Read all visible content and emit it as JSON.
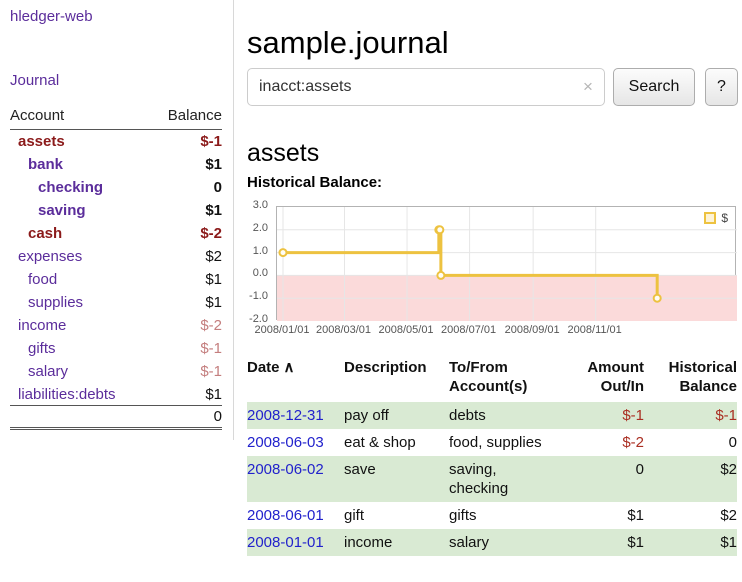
{
  "colors": {
    "link_purple": "#5b2d9b",
    "negative_dark": "#8b1a1a",
    "negative_light": "#c47e7e",
    "table_negative_red": "#aa2e22",
    "date_link_blue": "#2222cc",
    "row_green": "#d9ead3",
    "chart_series_gold": "#edc240",
    "chart_negative_fill": "#fbdada"
  },
  "app": {
    "brand": "hledger-web"
  },
  "sidebar": {
    "journal_link": "Journal",
    "header": {
      "account": "Account",
      "balance": "Balance"
    },
    "accounts": [
      {
        "name": "assets",
        "balance": "$-1"
      },
      {
        "name": "bank",
        "balance": "$1"
      },
      {
        "name": "checking",
        "balance": "0"
      },
      {
        "name": "saving",
        "balance": "$1"
      },
      {
        "name": "cash",
        "balance": "$-2"
      },
      {
        "name": "expenses",
        "balance": "$2"
      },
      {
        "name": "food",
        "balance": "$1"
      },
      {
        "name": "supplies",
        "balance": "$1"
      },
      {
        "name": "income",
        "balance": "$-2"
      },
      {
        "name": "gifts",
        "balance": "$-1"
      },
      {
        "name": "salary",
        "balance": "$-1"
      },
      {
        "name": "liabilities:debts",
        "balance": "$1"
      }
    ],
    "total": "0"
  },
  "main": {
    "title": "sample.journal",
    "search": {
      "value": "inacct:assets",
      "clear_icon": "×",
      "search_button": "Search",
      "help_button": "?"
    },
    "account_heading": "assets",
    "chart_title": "Historical Balance:"
  },
  "chart_data": {
    "type": "line",
    "step": true,
    "title": "Historical Balance",
    "series": [
      {
        "name": "$",
        "color": "#edc240",
        "points": [
          {
            "x": "2008/01/01",
            "y": 1.0
          },
          {
            "x": "2008/06/01",
            "y": 2.0
          },
          {
            "x": "2008/06/02",
            "y": 2.0
          },
          {
            "x": "2008/06/03",
            "y": 0.0
          },
          {
            "x": "2008/12/31",
            "y": -1.0
          }
        ]
      }
    ],
    "ylim": [
      -2.0,
      3.0
    ],
    "yticks": [
      "3.0",
      "2.0",
      "1.0",
      "0.0",
      "-1.0",
      "-2.0"
    ],
    "xticks": [
      "2008/01/01",
      "2008/03/01",
      "2008/05/01",
      "2008/07/01",
      "2008/09/01",
      "2008/11/01"
    ],
    "xlim_days": [
      0,
      437
    ],
    "legend": {
      "label": "$",
      "position": "top-right"
    },
    "grid": true,
    "negative_region_color": "#fbdada"
  },
  "register": {
    "sort_icon": "∧",
    "headers": {
      "date": "Date",
      "description": "Description",
      "account": "To/From Account(s)",
      "amount": "Amount Out/In",
      "balance": "Historical Balance"
    },
    "rows": [
      {
        "date": "2008-12-31",
        "description": "pay off",
        "account": "debts",
        "amount": "$-1",
        "balance": "$-1"
      },
      {
        "date": "2008-06-03",
        "description": "eat & shop",
        "account": "food, supplies",
        "amount": "$-2",
        "balance": "0"
      },
      {
        "date": "2008-06-02",
        "description": "save",
        "account": "saving, checking",
        "amount": "0",
        "balance": "$2"
      },
      {
        "date": "2008-06-01",
        "description": "gift",
        "account": "gifts",
        "amount": "$1",
        "balance": "$2"
      },
      {
        "date": "2008-01-01",
        "description": "income",
        "account": "salary",
        "amount": "$1",
        "balance": "$1"
      }
    ]
  }
}
